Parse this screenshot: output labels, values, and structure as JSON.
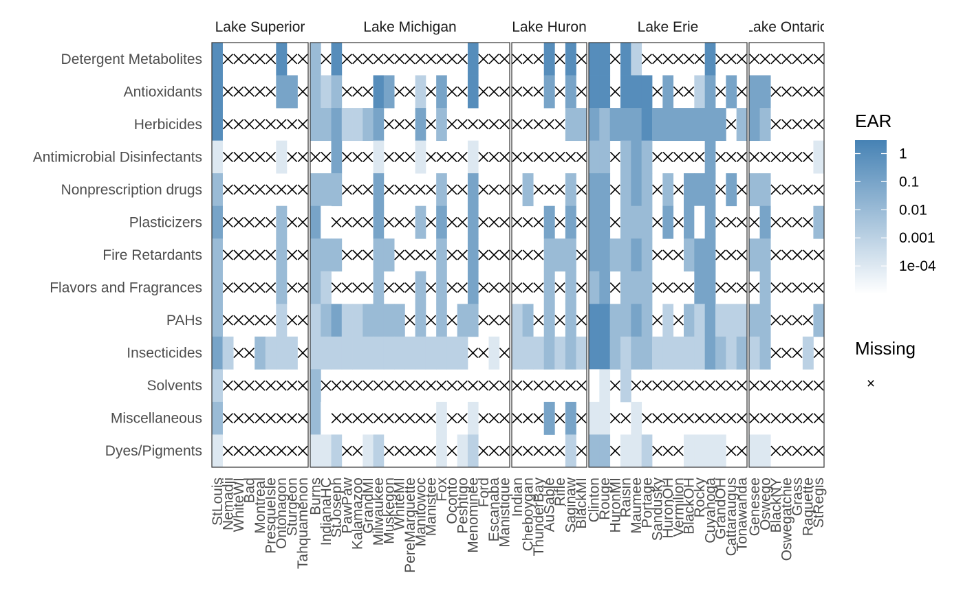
{
  "chart_data": {
    "type": "heatmap",
    "title": "",
    "xlabel": "",
    "ylabel": "",
    "rows": [
      "Detergent Metabolites",
      "Antioxidants",
      "Herbicides",
      "Antimicrobial Disinfectants",
      "Nonprescription drugs",
      "Plasticizers",
      "Fire Retardants",
      "Flavors and Fragrances",
      "PAHs",
      "Insecticides",
      "Solvents",
      "Miscellaneous",
      "Dyes/Pigments"
    ],
    "color_scale": {
      "type": "log",
      "low_color": "#ffffff",
      "high_color": "#4682b4",
      "domain": [
        1e-05,
        3
      ]
    },
    "legend": {
      "title": "EAR",
      "ticks": [
        1,
        0.1,
        0.01,
        0.001,
        0.0001
      ],
      "tick_labels": [
        "1",
        "0.1",
        "0.01",
        "0.001",
        "1e-04"
      ],
      "missing_title": "Missing",
      "missing_symbol": "×"
    },
    "panels": [
      {
        "name": "Lake Superior",
        "strip_label": "Lake Superior",
        "sites": [
          "StLouis",
          "Nemadji",
          "WhiteWI",
          "Bad",
          "Montreal",
          "PresqueIsle",
          "Ontonagon",
          "Sturgeon",
          "Tahquamenon"
        ],
        "values": [
          [
            1.0,
            null,
            null,
            null,
            null,
            null,
            1.0,
            null,
            null
          ],
          [
            1.0,
            null,
            null,
            null,
            null,
            null,
            0.1,
            0.1,
            null
          ],
          [
            1.0,
            null,
            null,
            null,
            null,
            null,
            null,
            null,
            null
          ],
          [
            0.0001,
            null,
            null,
            null,
            null,
            null,
            0.0001,
            null,
            null
          ],
          [
            0.01,
            null,
            null,
            null,
            null,
            null,
            null,
            null,
            null
          ],
          [
            0.1,
            null,
            null,
            null,
            null,
            null,
            0.01,
            null,
            null
          ],
          [
            0.01,
            null,
            null,
            null,
            null,
            null,
            0.01,
            null,
            null
          ],
          [
            0.01,
            null,
            null,
            null,
            null,
            null,
            0.01,
            null,
            null
          ],
          [
            0.01,
            null,
            null,
            null,
            null,
            null,
            0.001,
            null,
            null
          ],
          [
            0.1,
            0.001,
            null,
            null,
            0.01,
            0.001,
            0.001,
            0.001,
            null
          ],
          [
            0.001,
            null,
            null,
            null,
            null,
            null,
            null,
            null,
            null
          ],
          [
            0.01,
            null,
            null,
            null,
            null,
            null,
            null,
            null,
            null
          ],
          [
            0.0001,
            null,
            null,
            null,
            null,
            null,
            null,
            null,
            null
          ]
        ]
      },
      {
        "name": "Lake Michigan",
        "strip_label": "Lake Michigan",
        "sites": [
          "Burns",
          "IndianaHC",
          "StJoseph",
          "PawPaw",
          "Kalamazoo",
          "GrandMI",
          "Milwaukee",
          "Muskegon",
          "WhiteMI",
          "PereMarquette",
          "Manitowoc",
          "Manistee",
          "Fox",
          "Oconto",
          "Peshtigo",
          "Menominee",
          "Ford",
          "Escanaba",
          "Manistique"
        ],
        "values": [
          [
            0.01,
            null,
            1.0,
            null,
            null,
            null,
            null,
            null,
            null,
            null,
            null,
            null,
            null,
            null,
            null,
            1.0,
            null,
            null,
            null
          ],
          [
            0.01,
            0.001,
            0.01,
            null,
            null,
            null,
            1.0,
            0.1,
            null,
            null,
            0.001,
            null,
            0.1,
            null,
            null,
            1.0,
            null,
            null,
            null
          ],
          [
            0.01,
            0.01,
            0.1,
            0.001,
            0.001,
            0.01,
            0.1,
            null,
            null,
            null,
            0.1,
            null,
            0.01,
            null,
            null,
            null,
            null,
            null,
            null
          ],
          [
            null,
            null,
            0.1,
            null,
            null,
            null,
            0.0001,
            null,
            null,
            null,
            0.0001,
            null,
            null,
            null,
            null,
            0.0001,
            null,
            null,
            null
          ],
          [
            0.01,
            0.01,
            0.01,
            null,
            null,
            null,
            0.1,
            null,
            null,
            null,
            null,
            null,
            0.01,
            null,
            null,
            0.1,
            null,
            null,
            null
          ],
          [
            0.1,
            0.0,
            null,
            null,
            null,
            null,
            0.1,
            null,
            null,
            null,
            0.01,
            null,
            0.1,
            null,
            null,
            0.1,
            null,
            null,
            null
          ],
          [
            0.01,
            0.01,
            0.01,
            null,
            null,
            null,
            0.01,
            0.01,
            null,
            null,
            null,
            null,
            0.01,
            null,
            null,
            0.1,
            null,
            null,
            null
          ],
          [
            0.01,
            0.001,
            null,
            null,
            null,
            null,
            0.01,
            null,
            null,
            null,
            0.01,
            null,
            0.01,
            null,
            null,
            0.1,
            null,
            null,
            null
          ],
          [
            0.001,
            0.01,
            0.1,
            0.001,
            0.001,
            0.01,
            0.01,
            0.01,
            0.01,
            null,
            0.01,
            null,
            0.01,
            null,
            0.01,
            0.01,
            null,
            null,
            null
          ],
          [
            0.001,
            0.001,
            0.001,
            0.001,
            0.001,
            0.001,
            0.001,
            0.001,
            0.001,
            0.001,
            0.001,
            0.001,
            0.001,
            0.001,
            0.001,
            null,
            null,
            0.0001,
            null
          ],
          [
            0.01,
            null,
            null,
            null,
            null,
            null,
            null,
            null,
            null,
            null,
            null,
            null,
            null,
            null,
            null,
            null,
            null,
            null,
            null
          ],
          [
            0.01,
            0.0,
            null,
            null,
            null,
            null,
            null,
            null,
            null,
            null,
            null,
            null,
            0.0001,
            null,
            null,
            0.0001,
            null,
            null,
            null
          ],
          [
            0.0001,
            0.0001,
            0.001,
            null,
            null,
            0.0001,
            0.001,
            null,
            null,
            null,
            null,
            null,
            0.0001,
            null,
            0.0001,
            0.001,
            null,
            null,
            null
          ]
        ]
      },
      {
        "name": "Lake Huron",
        "strip_label": "Lake Huron",
        "sites": [
          "Indian",
          "Cheboygan",
          "ThunderBay",
          "AuSable",
          "Rifle",
          "Saginaw",
          "BlackMI"
        ],
        "values": [
          [
            null,
            null,
            null,
            1.0,
            null,
            1.0,
            null
          ],
          [
            null,
            null,
            null,
            0.1,
            null,
            0.1,
            null
          ],
          [
            null,
            null,
            null,
            null,
            null,
            0.01,
            0.01
          ],
          [
            null,
            null,
            null,
            null,
            null,
            null,
            null
          ],
          [
            null,
            0.01,
            null,
            null,
            null,
            0.01,
            null
          ],
          [
            null,
            null,
            null,
            0.1,
            null,
            0.1,
            null
          ],
          [
            null,
            null,
            null,
            0.01,
            0.01,
            0.01,
            null
          ],
          [
            null,
            null,
            null,
            0.01,
            null,
            0.01,
            null
          ],
          [
            0.001,
            0.01,
            null,
            0.01,
            null,
            0.01,
            null
          ],
          [
            0.001,
            0.001,
            0.001,
            0.01,
            0.001,
            0.01,
            0.001
          ],
          [
            null,
            null,
            null,
            null,
            null,
            null,
            null
          ],
          [
            null,
            null,
            null,
            0.1,
            null,
            0.1,
            null
          ],
          [
            null,
            null,
            null,
            null,
            null,
            0.001,
            null
          ]
        ]
      },
      {
        "name": "Lake Erie",
        "strip_label": "Lake Erie",
        "sites": [
          "Clinton",
          "Rouge",
          "HuronMI",
          "Raisin",
          "Maumee",
          "Portage",
          "Sandusky",
          "HuronOH",
          "Vermilion",
          "BlackOH",
          "Rocky",
          "Cuyahoga",
          "GrandOH",
          "Cattaraugus",
          "Tonawanda"
        ],
        "values": [
          [
            1.0,
            1.0,
            null,
            1.0,
            0.001,
            null,
            null,
            null,
            null,
            null,
            null,
            1.0,
            null,
            null,
            null
          ],
          [
            1.0,
            1.0,
            null,
            1.0,
            1.0,
            1.0,
            null,
            0.1,
            null,
            null,
            0.001,
            0.1,
            null,
            0.1,
            null
          ],
          [
            0.1,
            0.01,
            0.1,
            0.1,
            0.1,
            1.0,
            0.1,
            0.1,
            0.1,
            0.1,
            0.1,
            0.1,
            0.1,
            null,
            0.01
          ],
          [
            0.01,
            0.01,
            null,
            0.01,
            0.1,
            0.01,
            null,
            null,
            null,
            null,
            null,
            0.1,
            null,
            null,
            null
          ],
          [
            0.1,
            0.1,
            null,
            0.01,
            0.1,
            0.01,
            null,
            0.01,
            null,
            0.1,
            0.1,
            0.1,
            null,
            0.1,
            null
          ],
          [
            0.1,
            0.1,
            null,
            0.01,
            0.01,
            0.01,
            null,
            0.1,
            null,
            0.1,
            0.0,
            0.1,
            null,
            null,
            null
          ],
          [
            0.1,
            0.1,
            0.01,
            0.01,
            0.1,
            0.01,
            null,
            null,
            null,
            0.01,
            0.1,
            0.1,
            null,
            null,
            null
          ],
          [
            0.01,
            0.1,
            null,
            0.01,
            0.01,
            0.01,
            null,
            null,
            null,
            null,
            0.1,
            0.1,
            null,
            null,
            null
          ],
          [
            1.0,
            1.0,
            0.01,
            0.01,
            0.1,
            0.01,
            null,
            0.001,
            null,
            0.01,
            0.001,
            0.1,
            0.001,
            0.001,
            0.001
          ],
          [
            1.0,
            1.0,
            0.01,
            0.001,
            0.01,
            0.01,
            0.001,
            0.001,
            0.001,
            0.001,
            0.001,
            0.1,
            0.01,
            0.001,
            0.01
          ],
          [
            0.0,
            0.0001,
            null,
            0.001,
            null,
            null,
            null,
            null,
            null,
            null,
            null,
            null,
            null,
            null,
            null
          ],
          [
            0.0001,
            0.0001,
            null,
            null,
            0.0001,
            null,
            null,
            null,
            null,
            null,
            null,
            null,
            null,
            null,
            null
          ],
          [
            0.01,
            0.01,
            null,
            0.0001,
            0.0001,
            0.001,
            null,
            null,
            null,
            0.0001,
            0.0001,
            0.0001,
            0.0001,
            null,
            null
          ]
        ]
      },
      {
        "name": "Lake Ontario",
        "strip_label": "Lake Ontario",
        "sites": [
          "Genesee",
          "Oswego",
          "BlackNY",
          "Oswegatchie",
          "Grass",
          "Raquette",
          "StRegis"
        ],
        "values": [
          [
            null,
            null,
            null,
            null,
            null,
            null,
            null
          ],
          [
            0.1,
            0.1,
            null,
            null,
            null,
            null,
            null
          ],
          [
            0.1,
            0.01,
            null,
            null,
            null,
            null,
            null
          ],
          [
            null,
            null,
            null,
            null,
            null,
            null,
            0.0001
          ],
          [
            0.01,
            0.01,
            null,
            null,
            null,
            null,
            null
          ],
          [
            null,
            0.1,
            null,
            null,
            null,
            null,
            0.01
          ],
          [
            0.01,
            0.01,
            null,
            null,
            null,
            null,
            null
          ],
          [
            null,
            0.01,
            null,
            null,
            null,
            null,
            null
          ],
          [
            0.01,
            0.01,
            null,
            null,
            null,
            null,
            0.01
          ],
          [
            0.001,
            0.01,
            null,
            null,
            null,
            0.001,
            null
          ],
          [
            null,
            null,
            null,
            null,
            null,
            null,
            null
          ],
          [
            null,
            null,
            null,
            null,
            null,
            null,
            null
          ],
          [
            0.0001,
            0.0001,
            null,
            null,
            null,
            null,
            null
          ]
        ]
      }
    ]
  }
}
